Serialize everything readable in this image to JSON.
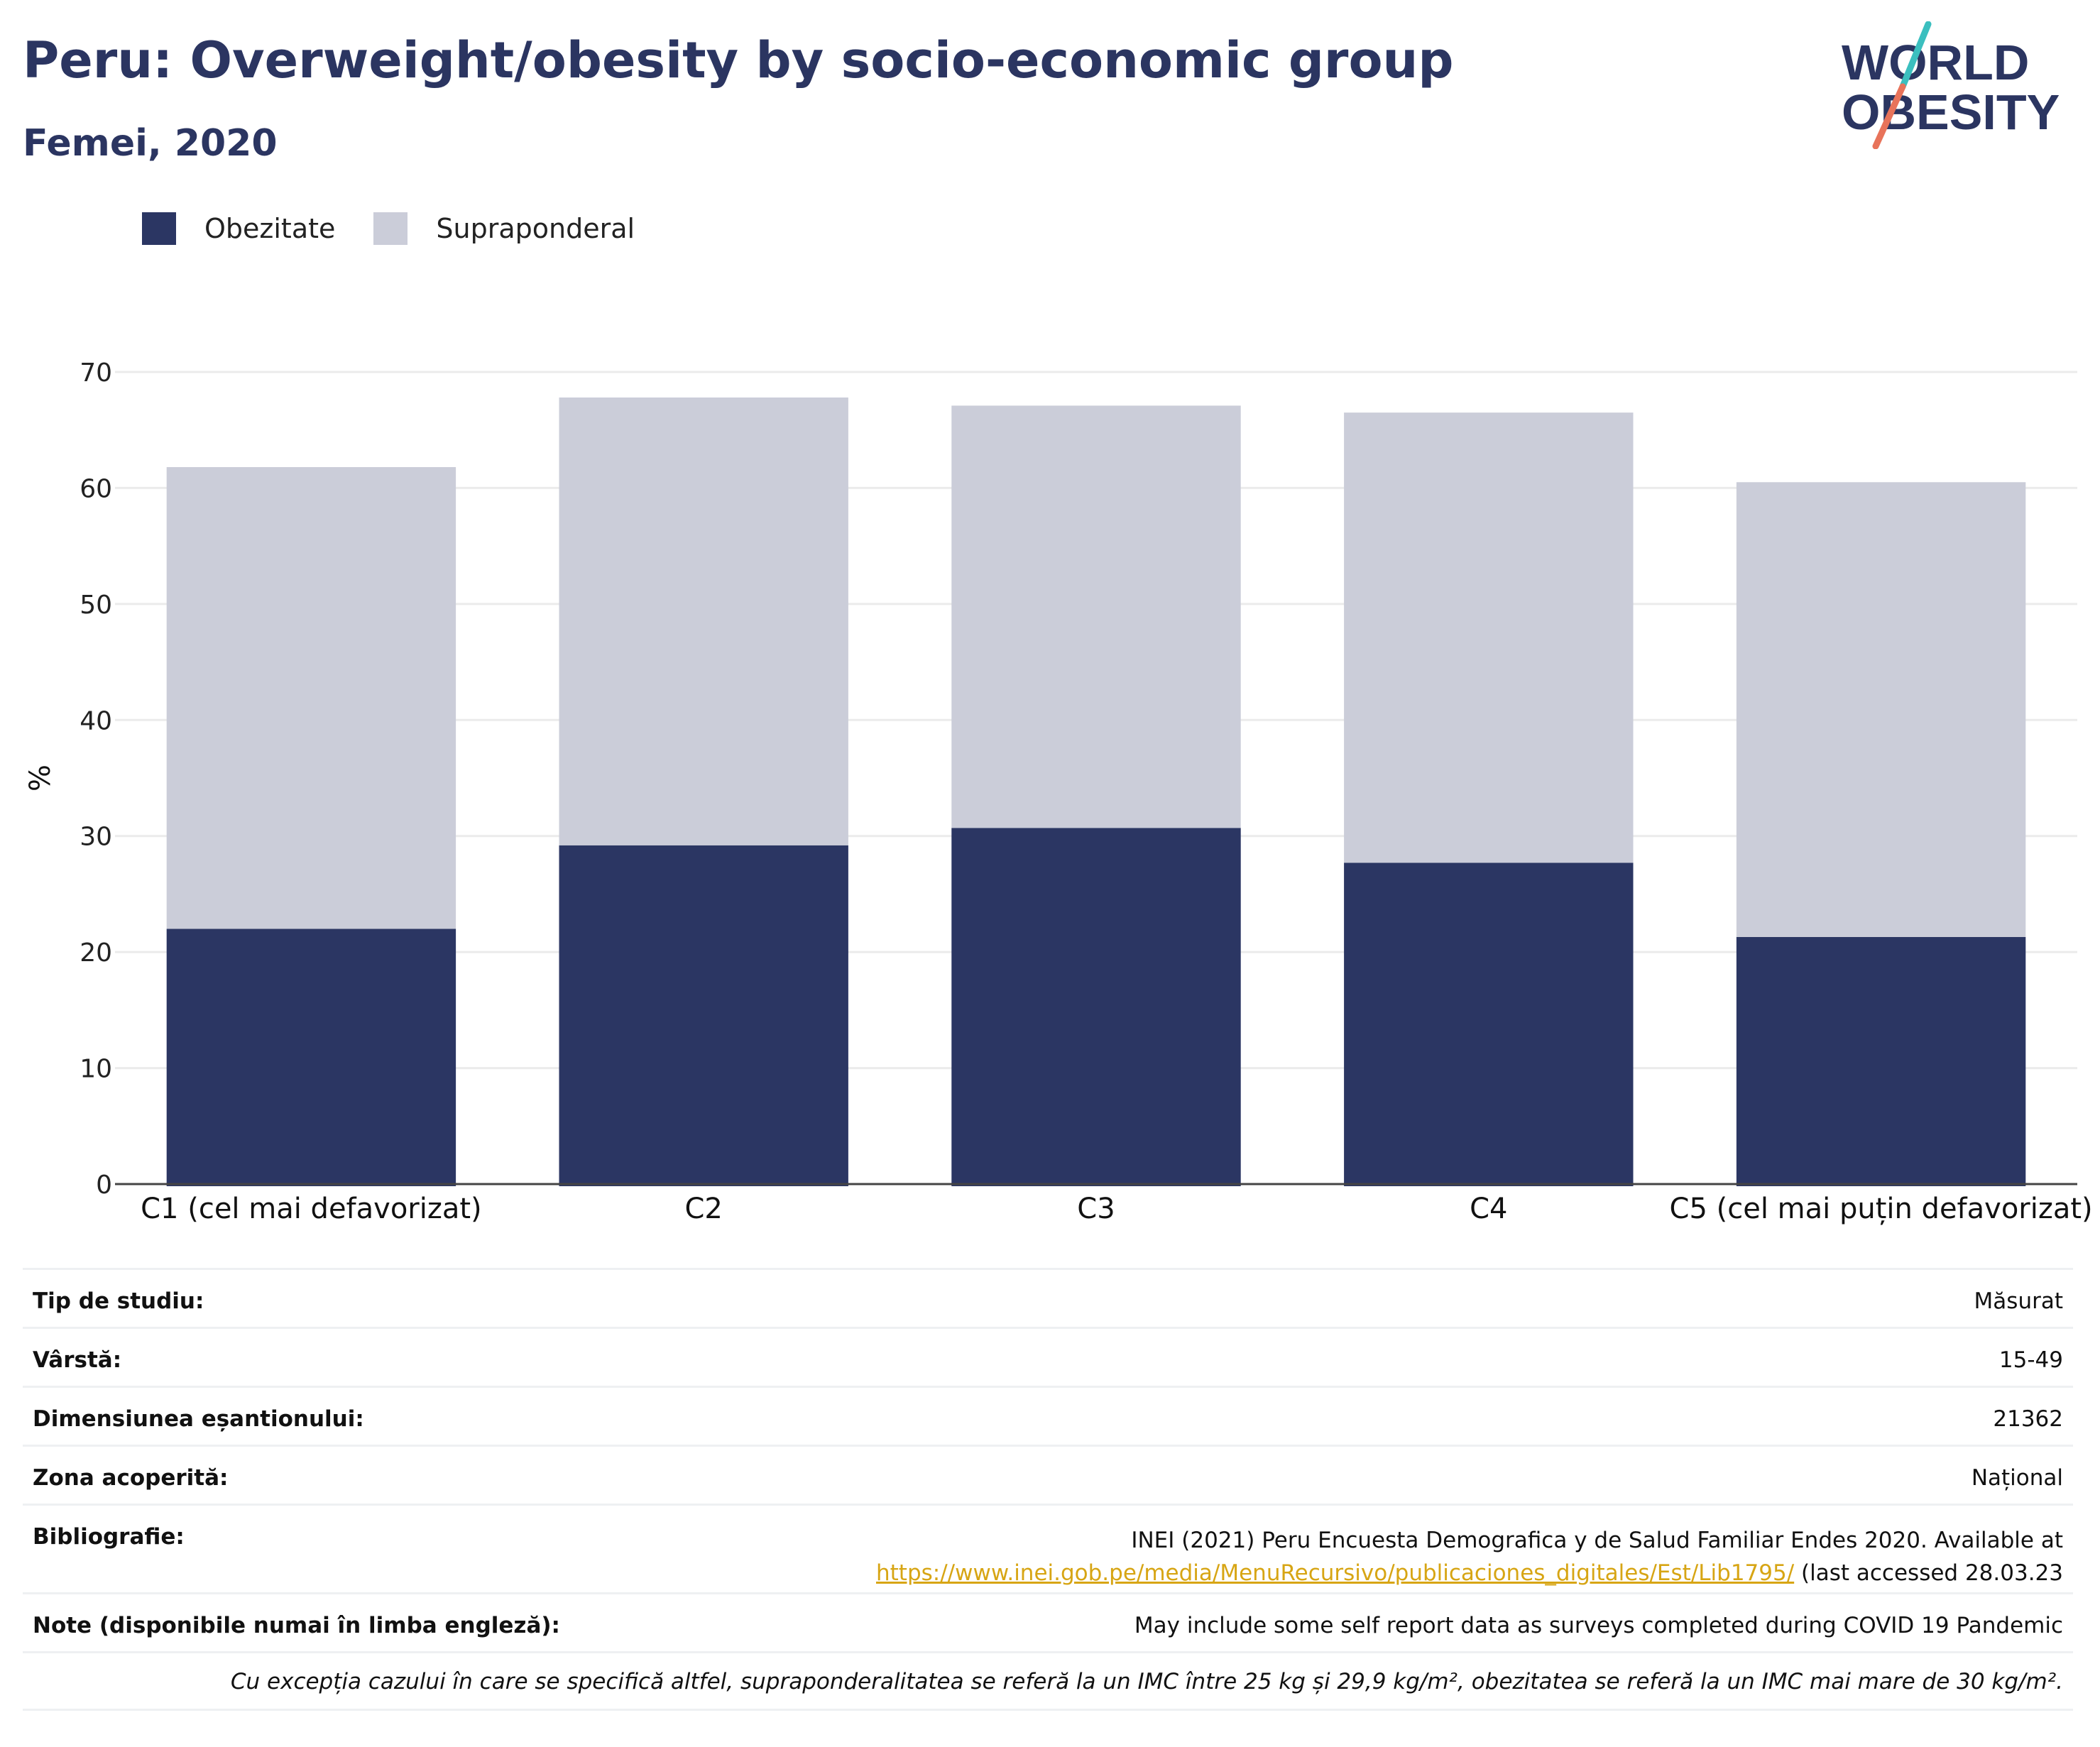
{
  "header": {
    "title": "Peru: Overweight/obesity by socio-economic group",
    "subtitle": "Femei, 2020"
  },
  "logo": {
    "line1": "WORLD",
    "line2": "OBESITY",
    "slash_colors": [
      "#3bbfbf",
      "#e8735a"
    ]
  },
  "colors": {
    "obesity": "#2b3663",
    "overweight": "#cbcdd9",
    "title": "#2b3561",
    "link": "#d7a514"
  },
  "legend": [
    {
      "label": "Obezitate",
      "color": "#2b3663"
    },
    {
      "label": "Supraponderal",
      "color": "#cbcdd9"
    }
  ],
  "chart_data": {
    "type": "bar",
    "stacked": true,
    "categories": [
      "C1 (cel mai defavorizat)",
      "C2",
      "C3",
      "C4",
      "C5 (cel mai puțin defavorizat)"
    ],
    "series": [
      {
        "name": "Obezitate",
        "values": [
          22.0,
          29.2,
          30.7,
          27.7,
          21.3
        ]
      },
      {
        "name": "Supraponderal",
        "values": [
          39.8,
          38.6,
          36.4,
          38.8,
          39.2
        ]
      }
    ],
    "ylabel": "%",
    "ylim": [
      0,
      70
    ],
    "yticks": [
      0,
      10,
      20,
      30,
      40,
      50,
      60,
      70
    ],
    "grid": true,
    "legend_position": "top-left"
  },
  "info": {
    "rows": [
      {
        "label": "Tip de studiu:",
        "value": "Măsurat"
      },
      {
        "label": "Vârstă:",
        "value": "15-49"
      },
      {
        "label": "Dimensiunea eșantionului:",
        "value": "21362"
      },
      {
        "label": "Zona acoperită:",
        "value": "Național"
      }
    ],
    "bibliography": {
      "label": "Bibliografie:",
      "line1": "INEI (2021) Peru Encuesta Demografica y de Salud Familiar Endes 2020. Available at",
      "link": "https://www.inei.gob.pe/media/MenuRecursivo/publicaciones_digitales/Est/Lib1795/",
      "after_link": " (last accessed 28.03.23"
    },
    "note": {
      "label": "Note (disponibile numai în limba engleză):",
      "value": "May include some self report data as surveys completed during COVID 19 Pandemic"
    },
    "footnote": "Cu excepția cazului în care se specifică altfel, supraponderalitatea se referă la un IMC între 25 kg și 29,9 kg/m², obezitatea se referă la un IMC mai mare de 30 kg/m²."
  }
}
